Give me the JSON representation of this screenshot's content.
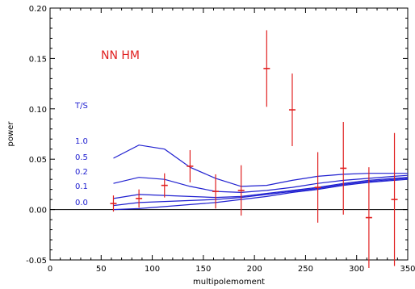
{
  "chart_data": {
    "type": "scatter",
    "title": "",
    "xlabel": "multipolemoment",
    "ylabel": "power",
    "xlim": [
      0,
      350
    ],
    "ylim": [
      -0.05,
      0.2
    ],
    "x_ticks": [
      0,
      50,
      100,
      150,
      200,
      250,
      300,
      350
    ],
    "y_ticks": [
      -0.05,
      0.0,
      0.05,
      0.1,
      0.15,
      0.2
    ],
    "x_tick_labels": [
      "0",
      "50",
      "100",
      "150",
      "200",
      "250",
      "300",
      "350"
    ],
    "y_tick_labels": [
      "-0.05",
      "0.00",
      "0.05",
      "0.10",
      "0.15",
      "0.20"
    ],
    "grid": false,
    "zero_line": 0,
    "annotations": {
      "label": "NN  HM",
      "label_color": "#e02020",
      "ts_header": "T/S",
      "ts_values": [
        "1.0",
        "0.5",
        "0.2",
        "0.1",
        "0.0"
      ],
      "ts_color": "#2020d0"
    },
    "data_points": {
      "color": "#e02020",
      "x": [
        62,
        87,
        112,
        137,
        162,
        187,
        212,
        237,
        262,
        287,
        312,
        337
      ],
      "y": [
        0.006,
        0.011,
        0.024,
        0.043,
        0.018,
        0.019,
        0.14,
        0.099,
        0.022,
        0.041,
        -0.008,
        0.01
      ],
      "err": [
        0.008,
        0.009,
        0.012,
        0.016,
        0.017,
        0.025,
        0.038,
        0.036,
        0.035,
        0.046,
        0.05,
        0.066
      ]
    },
    "model_curves": {
      "color": "#2020d0",
      "series": [
        {
          "name": "1.0",
          "x": [
            62,
            87,
            112,
            137,
            162,
            187,
            212,
            237,
            262,
            287,
            312,
            337,
            350
          ],
          "y": [
            0.051,
            0.064,
            0.06,
            0.042,
            0.031,
            0.023,
            0.024,
            0.029,
            0.033,
            0.035,
            0.036,
            0.036,
            0.036
          ]
        },
        {
          "name": "0.5",
          "x": [
            62,
            87,
            112,
            137,
            162,
            187,
            212,
            237,
            262,
            287,
            312,
            337,
            350
          ],
          "y": [
            0.026,
            0.032,
            0.03,
            0.023,
            0.018,
            0.017,
            0.019,
            0.022,
            0.026,
            0.029,
            0.031,
            0.033,
            0.034
          ]
        },
        {
          "name": "0.2",
          "x": [
            62,
            87,
            112,
            137,
            162,
            187,
            212,
            237,
            262,
            287,
            312,
            337,
            350
          ],
          "y": [
            0.011,
            0.015,
            0.014,
            0.013,
            0.012,
            0.013,
            0.016,
            0.019,
            0.022,
            0.026,
            0.029,
            0.031,
            0.032
          ]
        },
        {
          "name": "0.1",
          "x": [
            62,
            87,
            112,
            137,
            162,
            187,
            212,
            237,
            262,
            287,
            312,
            337,
            350
          ],
          "y": [
            0.004,
            0.007,
            0.008,
            0.009,
            0.01,
            0.012,
            0.015,
            0.018,
            0.021,
            0.025,
            0.028,
            0.03,
            0.031
          ]
        },
        {
          "name": "0.0",
          "x": [
            62,
            87,
            112,
            137,
            162,
            187,
            212,
            237,
            262,
            287,
            312,
            337,
            350
          ],
          "y": [
            0.0,
            0.001,
            0.003,
            0.005,
            0.007,
            0.01,
            0.013,
            0.017,
            0.02,
            0.024,
            0.027,
            0.029,
            0.03
          ]
        }
      ]
    }
  }
}
